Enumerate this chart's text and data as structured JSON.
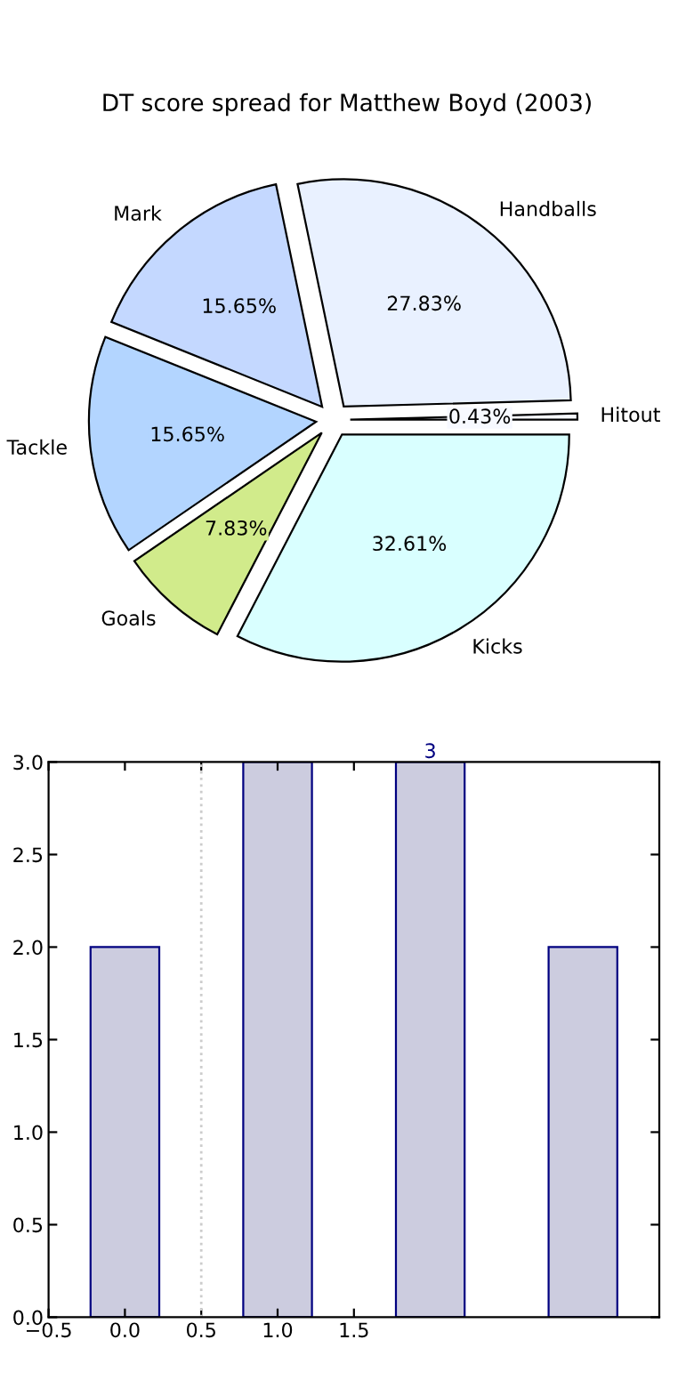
{
  "chart_data": [
    {
      "type": "pie",
      "title": "DT score spread for Matthew Boyd (2003)",
      "categories": [
        "Kicks",
        "Hitout",
        "Handballs",
        "Mark",
        "Tackle",
        "Goals"
      ],
      "values": [
        32.61,
        0.43,
        27.83,
        15.65,
        15.65,
        7.83
      ],
      "value_labels": [
        "32.61%",
        "0.43%",
        "27.83%",
        "15.65%",
        "15.65%",
        "7.83%"
      ],
      "colors": [
        "#d9ffff",
        "#f7f9ff",
        "#e9f1ff",
        "#c4d8ff",
        "#b3d5ff",
        "#d1eb8b"
      ]
    },
    {
      "type": "bar",
      "x": [
        0,
        1,
        2,
        3
      ],
      "values": [
        2,
        3,
        3,
        2
      ],
      "color": "#ccccdf",
      "value_labels": [
        null,
        null,
        "3",
        null
      ],
      "xlim": [
        -0.5,
        3.5
      ],
      "ylim": [
        0,
        3
      ],
      "xticks": [
        {
          "value": -0.5,
          "label": "−0.5"
        },
        {
          "value": 0,
          "label": "0.0"
        },
        {
          "value": 0.5,
          "label": "0.5"
        },
        {
          "value": 1,
          "label": "1.0"
        },
        {
          "value": 1.5,
          "label": "1.5"
        }
      ],
      "yticks": [
        {
          "value": 0,
          "label": "0.0"
        },
        {
          "value": 0.5,
          "label": "0.5"
        },
        {
          "value": 1,
          "label": "1.0"
        },
        {
          "value": 1.5,
          "label": "1.5"
        },
        {
          "value": 2,
          "label": "2.0"
        },
        {
          "value": 2.5,
          "label": "2.5"
        },
        {
          "value": 3,
          "label": "3.0"
        }
      ],
      "ref_lines": [
        {
          "axis": "x",
          "value": 0.5,
          "color": "#cccccc",
          "line_style": "dotted"
        }
      ],
      "grid": false
    }
  ]
}
